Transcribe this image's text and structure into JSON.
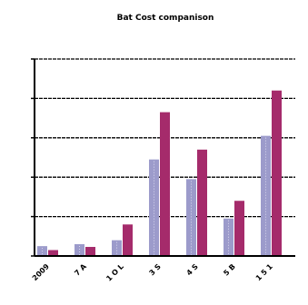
{
  "chart_data": {
    "type": "bar",
    "title": "Bat Cost companison",
    "categories": [
      "2009",
      "7 A",
      "1 O L",
      "3 S",
      "4 S",
      "5 B",
      "1 5 1"
    ],
    "series": [
      {
        "values": [
          2.5,
          3.0,
          4.0,
          24.5,
          19.5,
          9.5,
          30.5
        ]
      },
      {
        "values": [
          1.5,
          2.3,
          8.0,
          36.5,
          27.0,
          14.0,
          42.0
        ]
      }
    ],
    "ylim": [
      0,
      50
    ],
    "grid": true,
    "colors": {
      "series1": "#9c9bcb",
      "series2": "#a52b6b"
    }
  }
}
